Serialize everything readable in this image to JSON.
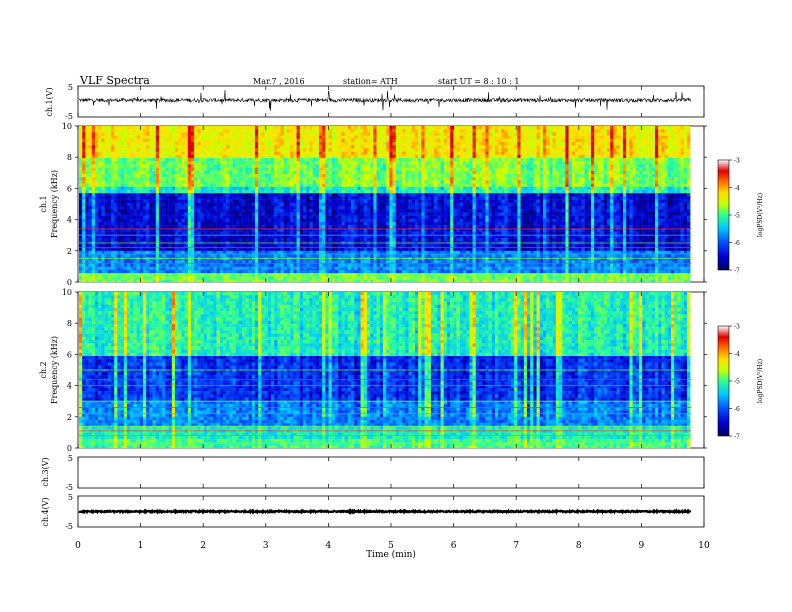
{
  "header": {
    "title": "VLF  Spectra",
    "date": "Mar.7  , 2016",
    "station": "station= ATH",
    "start": "start  UT  =   8  : 10 : 1"
  },
  "colors": {
    "colormap": [
      "#000060",
      "#0000d0",
      "#0050ff",
      "#00c8ff",
      "#30ff90",
      "#c8ff00",
      "#ffe000",
      "#ff7000",
      "#e00000",
      "#ffffff"
    ],
    "trace": "#000000",
    "hline_green": "#7dff3a",
    "hline_blue": "#3aa8ff",
    "hline_red": "#ff3030"
  },
  "chart_data": {
    "type": "heatmap",
    "x_axis": {
      "label": "Time  (min)",
      "range": [
        0,
        10
      ],
      "ticks": [
        0,
        1,
        2,
        3,
        4,
        5,
        6,
        7,
        8,
        9,
        10
      ],
      "data_end_min": 9.8
    },
    "panels": [
      {
        "id": "ch1-waveform",
        "type": "line",
        "ylabel": "ch.1(V)",
        "ylim": [
          -5,
          5
        ],
        "yticks": [
          "5",
          "-5"
        ],
        "baseline": 0.5,
        "noise_amplitude": 0.7
      },
      {
        "id": "ch1-spectrogram",
        "type": "heatmap",
        "ylabel": "ch.1\nFrequency  (kHz)",
        "ylim": [
          0,
          10
        ],
        "yticks": [
          0,
          2,
          4,
          6,
          8,
          10
        ],
        "bands": [
          {
            "from_khz": 0,
            "to_khz": 0.5,
            "level": 0.55
          },
          {
            "from_khz": 0.5,
            "to_khz": 2.0,
            "level": 0.3
          },
          {
            "from_khz": 2.0,
            "to_khz": 5.6,
            "level": 0.14
          },
          {
            "from_khz": 5.6,
            "to_khz": 6.2,
            "level": 0.45
          },
          {
            "from_khz": 6.2,
            "to_khz": 8.0,
            "level": 0.56
          },
          {
            "from_khz": 8.0,
            "to_khz": 10.0,
            "level": 0.72
          }
        ],
        "horizontal_lines_khz": [
          0.5,
          0.9,
          1.2,
          1.5,
          1.8,
          2.2,
          2.5,
          3.0,
          3.4
        ],
        "colorbar": {
          "label": "logPSD(V²/Hz)",
          "range": [
            -7,
            -3
          ],
          "ticks": [
            "-3",
            "-4",
            "-5",
            "-6",
            "-7"
          ]
        }
      },
      {
        "id": "ch2-spectrogram",
        "type": "heatmap",
        "ylabel": "ch.2\nFrequency  (kHz)",
        "ylim": [
          0,
          10
        ],
        "yticks": [
          0,
          2,
          4,
          6,
          8,
          10
        ],
        "bands": [
          {
            "from_khz": 0,
            "to_khz": 0.6,
            "level": 0.5
          },
          {
            "from_khz": 0.6,
            "to_khz": 1.4,
            "level": 0.45
          },
          {
            "from_khz": 1.4,
            "to_khz": 3.0,
            "level": 0.3
          },
          {
            "from_khz": 3.0,
            "to_khz": 5.4,
            "level": 0.2
          },
          {
            "from_khz": 5.4,
            "to_khz": 6.0,
            "level": 0.18
          },
          {
            "from_khz": 6.0,
            "to_khz": 10.0,
            "level": 0.46
          }
        ],
        "horizontal_lines_khz": [
          0.3,
          0.8,
          1.1,
          1.4,
          2.2,
          2.6,
          3.0,
          4.0,
          4.4,
          5.0
        ],
        "colorbar": {
          "label": "logPSD(V²/Hz)",
          "range": [
            -7,
            -3
          ],
          "ticks": [
            "-3",
            "-4",
            "-5",
            "-6",
            "-7"
          ]
        }
      },
      {
        "id": "ch3-waveform",
        "type": "line",
        "ylabel": "ch.3(V)",
        "ylim": [
          -5,
          5
        ],
        "yticks": [
          "5",
          "-5"
        ],
        "empty": true
      },
      {
        "id": "ch4-waveform",
        "type": "line",
        "ylabel": "ch.4(V)",
        "ylim": [
          -5,
          5
        ],
        "yticks": [
          "5",
          "-5"
        ],
        "baseline": 0,
        "noise_amplitude": 0.25
      }
    ]
  }
}
